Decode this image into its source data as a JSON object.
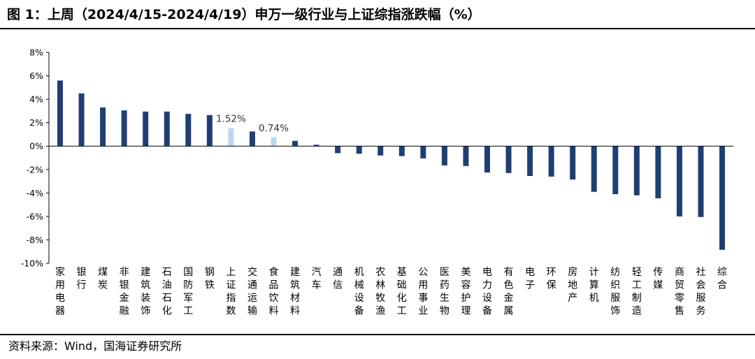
{
  "title": "图 1：上周（2024/4/15-2024/4/19）申万一级行业与上证综指涨跌幅（%）",
  "source": "资料来源：Wind，国海证券研究所",
  "colors": {
    "industry": "#1F3F73",
    "index": "#BDD7EE",
    "axis": "#000000"
  },
  "chart_data": {
    "type": "bar",
    "title": "上周（2024/4/15-2024/4/19）申万一级行业与上证综指涨跌幅（%）",
    "ylim": [
      -10,
      8
    ],
    "yticks": [
      8,
      6,
      4,
      2,
      0,
      -2,
      -4,
      -6,
      -8,
      -10
    ],
    "ytick_labels": [
      "8%",
      "6%",
      "4%",
      "2%",
      "0%",
      "-2%",
      "-4%",
      "-6%",
      "-8%",
      "-10%"
    ],
    "grid": false,
    "legend": "none",
    "categories": [
      "家用电器",
      "银行",
      "煤炭",
      "非银金融",
      "建筑装饰",
      "石油石化",
      "国防军工",
      "钢铁",
      "上证指数",
      "交通运输",
      "食品饮料",
      "建筑材料",
      "汽车",
      "通信",
      "机械设备",
      "农林牧渔",
      "基础化工",
      "公用事业",
      "医药生物",
      "美容护理",
      "电力设备",
      "有色金属",
      "电子",
      "环保",
      "房地产",
      "计算机",
      "纺织服饰",
      "轻工制造",
      "传媒",
      "商贸零售",
      "社会服务",
      "综合"
    ],
    "values": [
      5.6,
      4.5,
      3.3,
      3.05,
      2.95,
      2.95,
      2.75,
      2.65,
      1.52,
      1.25,
      0.74,
      0.45,
      0.12,
      -0.6,
      -0.65,
      -0.8,
      -0.85,
      -1.05,
      -1.65,
      -1.7,
      -2.25,
      -2.3,
      -2.55,
      -2.6,
      -2.85,
      -3.9,
      -4.1,
      -4.2,
      -4.45,
      -6.0,
      -6.05,
      -8.85
    ],
    "highlight": [
      8,
      10
    ],
    "annotations": [
      {
        "category": "上证指数",
        "text": "1.52%"
      },
      {
        "category": "食品饮料",
        "text": "0.74%"
      }
    ]
  }
}
